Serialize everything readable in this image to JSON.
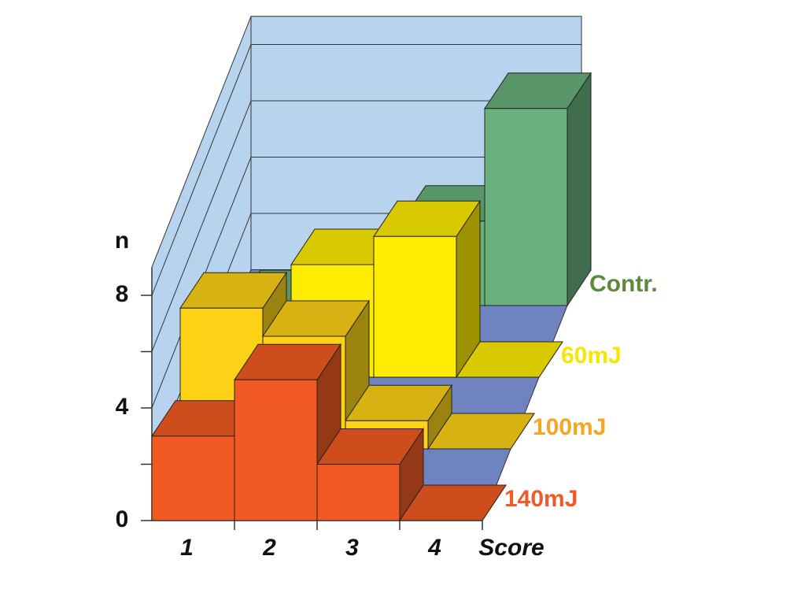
{
  "chart_data": {
    "type": "bar3d",
    "y_label": "n",
    "x_label": "Score",
    "categories": [
      "1",
      "2",
      "3",
      "4"
    ],
    "series": [
      {
        "name": "140mJ",
        "color": "#f15a22",
        "values": [
          3,
          5,
          2,
          0
        ]
      },
      {
        "name": "100mJ",
        "color": "#fcd116",
        "values": [
          5,
          4,
          1,
          0
        ]
      },
      {
        "name": "60mJ",
        "color": "#ffec00",
        "values": [
          1,
          4,
          5,
          0
        ]
      },
      {
        "name": "Contr.",
        "color": "#68b07c",
        "values": [
          0,
          0,
          3,
          7
        ]
      }
    ],
    "legend_colors": [
      "#ef5a28",
      "#f5a623",
      "#f6e600",
      "#5a8a3a"
    ],
    "ylim": [
      0,
      9
    ],
    "yticks": [
      0,
      4,
      8
    ],
    "minor_yticks": [
      2,
      6
    ],
    "grid": true
  }
}
